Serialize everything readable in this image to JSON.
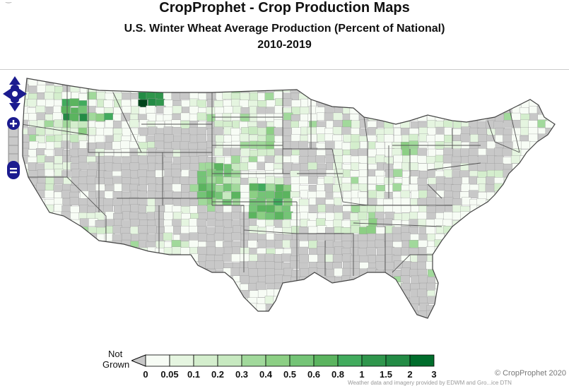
{
  "header": {
    "title": "CropProphet - Crop Production Maps",
    "subtitle": "U.S. Winter Wheat Average Production (Percent of National)",
    "period": "2010-2019"
  },
  "legend": {
    "not_grown_line1": "Not",
    "not_grown_line2": "Grown",
    "ticks": [
      "0",
      "0.05",
      "0.1",
      "0.2",
      "0.3",
      "0.4",
      "0.5",
      "0.6",
      "0.8",
      "1",
      "1.5",
      "2",
      "3"
    ],
    "colors": [
      "#f7fcf5",
      "#e5f5e0",
      "#d4eecd",
      "#c7e9c0",
      "#a1d99b",
      "#8ccf84",
      "#74c476",
      "#5bb45f",
      "#41ab5d",
      "#2f964c",
      "#238b45",
      "#006d2c",
      "#00441b"
    ],
    "not_grown_color": "#c8c8c8"
  },
  "nav_controls": {
    "pan_icon": "pan-arrows-icon",
    "zoom_in_icon": "zoom-in-icon",
    "zoom_out_icon": "zoom-out-icon",
    "accent": "#1b1b8f"
  },
  "footer": {
    "copyright": "© CropProphet 2020",
    "note": "Weather data and imagery provided by EDWM and Gro...ice DTN"
  }
}
